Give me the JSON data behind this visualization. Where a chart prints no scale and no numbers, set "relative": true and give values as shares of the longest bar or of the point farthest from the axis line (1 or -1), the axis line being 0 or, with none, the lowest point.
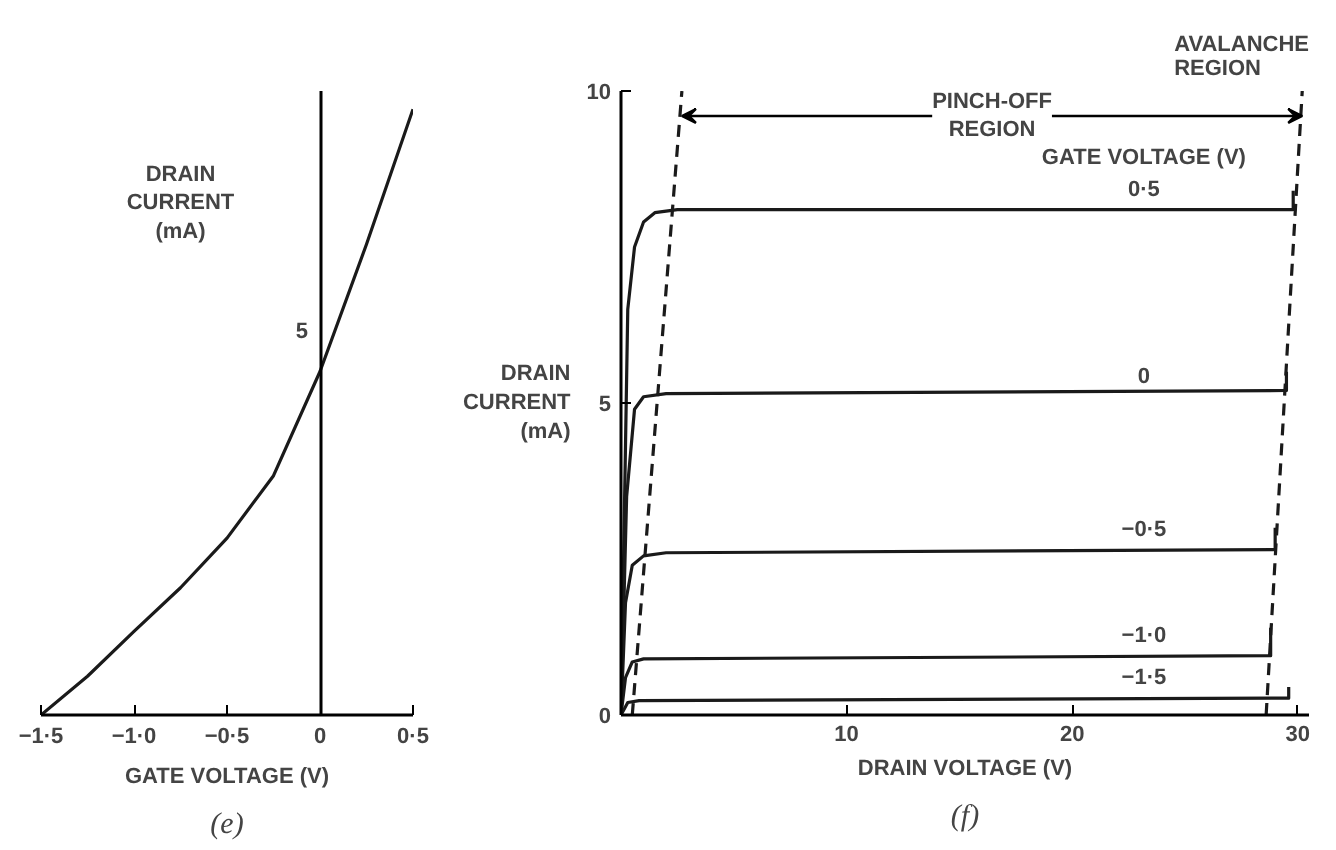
{
  "chart_data": [
    {
      "type": "line",
      "xlabel": "GATE VOLTAGE (V)",
      "ylabel": "DRAIN\nCURRENT\n(mA)",
      "categories": [
        "−1·5",
        null,
        "−1·0",
        null,
        "−0·5",
        null,
        "0",
        null,
        "0·5"
      ],
      "series": [
        {
          "color": "#1a1a1a",
          "values": [
            0,
            0.064,
            0.138,
            0.21,
            0.292,
            0.395,
            0.567,
            0.777,
            1
          ]
        }
      ],
      "relative": true,
      "marker": "none",
      "line_style": "solid",
      "annotations": [
        "5",
        "(e)"
      ]
    },
    {
      "type": "line",
      "xlabel": "DRAIN VOLTAGE (V)",
      "ylabel": "DRAIN\nCURRENT\n(mA)",
      "legend_title": "GATE VOLTAGE (V)",
      "series": [
        {
          "name": "0·5",
          "color": "#1a1a1a",
          "x": [
            0,
            0.3,
            0.6,
            1.0,
            1.5,
            2.5,
            29.8,
            29.8
          ],
          "values": [
            0,
            6.5,
            7.5,
            7.9,
            8.05,
            8.1,
            8.1,
            8.4
          ]
        },
        {
          "name": "0",
          "color": "#1a1a1a",
          "x": [
            0,
            0.25,
            0.6,
            1.0,
            2.0,
            29.5,
            29.5
          ],
          "values": [
            0,
            3.5,
            4.9,
            5.1,
            5.15,
            5.2,
            5.5
          ]
        },
        {
          "name": "−0·5",
          "color": "#1a1a1a",
          "x": [
            0,
            0.2,
            0.5,
            1.0,
            2.0,
            29.0,
            29.0
          ],
          "values": [
            0,
            1.8,
            2.4,
            2.55,
            2.6,
            2.65,
            3.0
          ]
        },
        {
          "name": "−1·0",
          "color": "#1a1a1a",
          "x": [
            0,
            0.2,
            0.5,
            1.0,
            28.8,
            28.8
          ],
          "values": [
            0,
            0.6,
            0.85,
            0.9,
            0.95,
            1.4
          ]
        },
        {
          "name": "−1·5",
          "color": "#1a1a1a",
          "x": [
            0,
            0.3,
            0.8,
            29.6,
            29.6
          ],
          "values": [
            0,
            0.2,
            0.23,
            0.27,
            0.45
          ]
        },
        {
          "color": "#1a1a1a",
          "line_style": "dashed",
          "x": [
            0.5,
            2.7
          ],
          "values": [
            0,
            10
          ]
        },
        {
          "color": "#1a1a1a",
          "line_style": "dashed",
          "x": [
            28.6,
            30.2
          ],
          "values": [
            0,
            10
          ]
        }
      ],
      "xlim": [
        0,
        30.5
      ],
      "ylim": [
        0,
        10
      ],
      "xticks": [
        10,
        20,
        30
      ],
      "yticks": [
        0,
        5,
        10
      ],
      "grid": false,
      "marker": "none",
      "line_style": "solid",
      "annotations": [
        "PINCH-OFF\nREGION",
        "AVALANCHE\nREGION",
        "(f)"
      ]
    }
  ]
}
